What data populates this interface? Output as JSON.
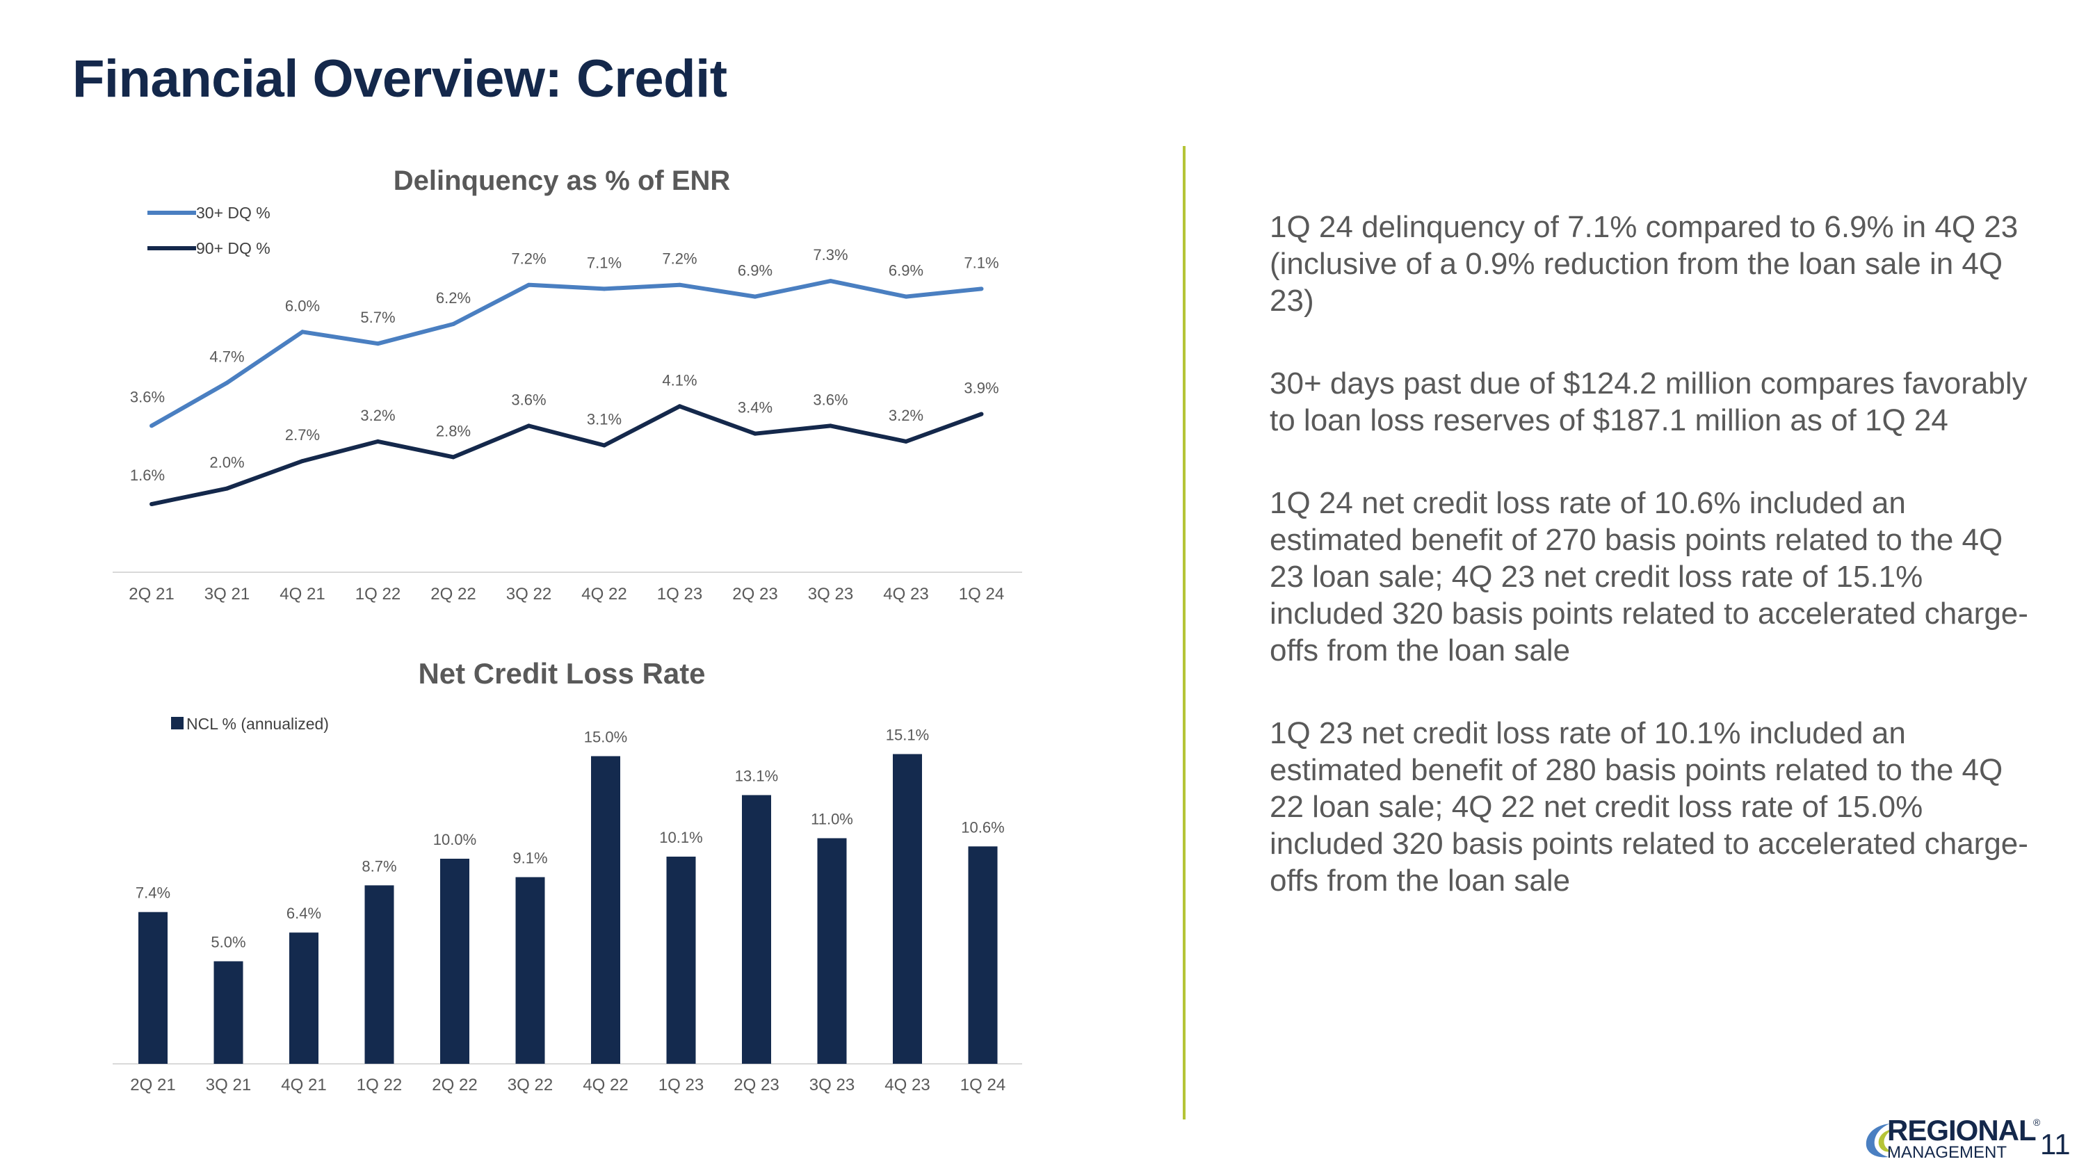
{
  "page": {
    "title": "Financial Overview: Credit",
    "page_number": "11"
  },
  "logo": {
    "line1": "REGIONAL",
    "reg_mark": "®",
    "line2": "MANAGEMENT"
  },
  "colors": {
    "title": "#14284b",
    "dq30": "#4a7fc1",
    "dq90": "#14284b",
    "ncl_bar": "#142a4e",
    "divider": "#b5c437"
  },
  "bullets": [
    "1Q 24 delinquency of 7.1% compared to 6.9% in 4Q 23 (inclusive of a 0.9% reduction from the loan sale in 4Q 23)",
    "30+ days past due of $124.2 million compares favorably to loan loss reserves of $187.1 million as of 1Q 24",
    "1Q 24 net credit loss rate of 10.6% included an estimated benefit of 270 basis points related to the 4Q 23 loan sale; 4Q 23 net credit loss rate of 15.1% included 320 basis points related to accelerated charge-offs from the loan sale",
    "1Q 23 net credit loss rate of 10.1% included an estimated benefit of 280 basis points related to the 4Q 22 loan sale; 4Q 22 net credit loss rate of 15.0% included 320 basis points related to accelerated charge-offs from the loan sale"
  ],
  "chart_data": [
    {
      "type": "line",
      "title": "Delinquency as % of ENR",
      "categories": [
        "2Q 21",
        "3Q 21",
        "4Q 21",
        "1Q 22",
        "2Q 22",
        "3Q 22",
        "4Q 22",
        "1Q 23",
        "2Q 23",
        "3Q 23",
        "4Q 23",
        "1Q 24"
      ],
      "series": [
        {
          "name": "30+ DQ %",
          "values": [
            3.6,
            4.7,
            6.0,
            5.7,
            6.2,
            7.2,
            7.1,
            7.2,
            6.9,
            7.3,
            6.9,
            7.1
          ],
          "labels": [
            "3.6%",
            "4.7%",
            "6.0%",
            "5.7%",
            "6.2%",
            "7.2%",
            "7.1%",
            "7.2%",
            "6.9%",
            "7.3%",
            "6.9%",
            "7.1%"
          ],
          "color": "#4a7fc1"
        },
        {
          "name": "90+ DQ %",
          "values": [
            1.6,
            2.0,
            2.7,
            3.2,
            2.8,
            3.6,
            3.1,
            4.1,
            3.4,
            3.6,
            3.2,
            3.9
          ],
          "labels": [
            "1.6%",
            "2.0%",
            "2.7%",
            "3.2%",
            "2.8%",
            "3.6%",
            "3.1%",
            "4.1%",
            "3.4%",
            "3.6%",
            "3.2%",
            "3.9%"
          ],
          "color": "#14284b"
        }
      ],
      "legend": "top-left",
      "grid": false
    },
    {
      "type": "bar",
      "title": "Net Credit Loss Rate",
      "categories": [
        "2Q 21",
        "3Q 21",
        "4Q 21",
        "1Q 22",
        "2Q 22",
        "3Q 22",
        "4Q 22",
        "1Q 23",
        "2Q 23",
        "3Q 23",
        "4Q 23",
        "1Q 24"
      ],
      "series": [
        {
          "name": "NCL % (annualized)",
          "values": [
            7.4,
            5.0,
            6.4,
            8.7,
            10.0,
            9.1,
            15.0,
            10.1,
            13.1,
            11.0,
            15.1,
            10.6
          ],
          "labels": [
            "7.4%",
            "5.0%",
            "6.4%",
            "8.7%",
            "10.0%",
            "9.1%",
            "15.0%",
            "10.1%",
            "13.1%",
            "11.0%",
            "15.1%",
            "10.6%"
          ],
          "color": "#142a4e"
        }
      ],
      "legend": "top-left",
      "grid": false
    }
  ]
}
